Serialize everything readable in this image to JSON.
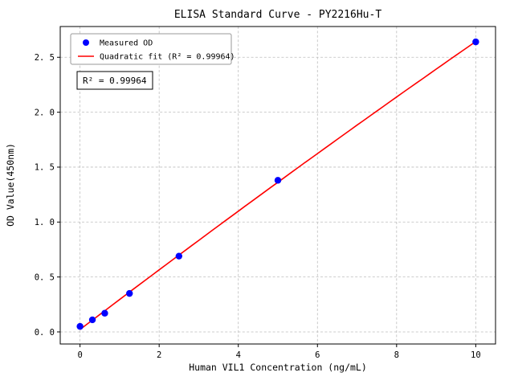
{
  "figure": {
    "title": "ELISA Standard Curve - PY2216Hu-T",
    "x_axis_label": "Human VIL1 Concentration (ng/mL)",
    "y_axis_label": "OD Value(450nm)",
    "annotation_r_squared": "R² = 0.99964"
  },
  "legend": {
    "items": [
      {
        "label": "Measured OD",
        "marker": "dot",
        "color": "#0000ff"
      },
      {
        "label": "Quadratic fit (R² = 0.99964)",
        "marker": "line",
        "color": "#ff0000"
      }
    ]
  },
  "chart_data": {
    "type": "scatter",
    "title": "ELISA Standard Curve - PY2216Hu-T",
    "xlabel": "Human VIL1 Concentration (ng/mL)",
    "ylabel": "OD Value(450nm)",
    "series": [
      {
        "name": "Measured OD",
        "type": "scatter",
        "color": "#0000ff",
        "x": [
          0,
          0.3125,
          0.625,
          1.25,
          2.5,
          5,
          10
        ],
        "y": [
          0.05,
          0.11,
          0.17,
          0.35,
          0.69,
          1.38,
          2.64
        ]
      },
      {
        "name": "Quadratic fit (R² = 0.99964)",
        "type": "line",
        "fit": "quadratic",
        "color": "#ff0000",
        "r_squared": 0.99964
      }
    ],
    "x_ticks": [
      0,
      2,
      4,
      6,
      8,
      10
    ],
    "x_tick_labels": [
      "0",
      "2",
      "4",
      "6",
      "8",
      "10"
    ],
    "y_ticks": [
      0,
      0.5,
      1,
      1.5,
      2,
      2.5
    ],
    "y_tick_labels": [
      "0. 0",
      "0. 5",
      "1. 0",
      "1. 5",
      "2. 0",
      "2. 5"
    ],
    "xlim": [
      -0.5,
      10.5
    ],
    "ylim": [
      -0.11,
      2.78
    ],
    "grid": true,
    "grid_style": "dashed",
    "legend_position": "upper left",
    "annotation": "R² = 0.99964"
  }
}
